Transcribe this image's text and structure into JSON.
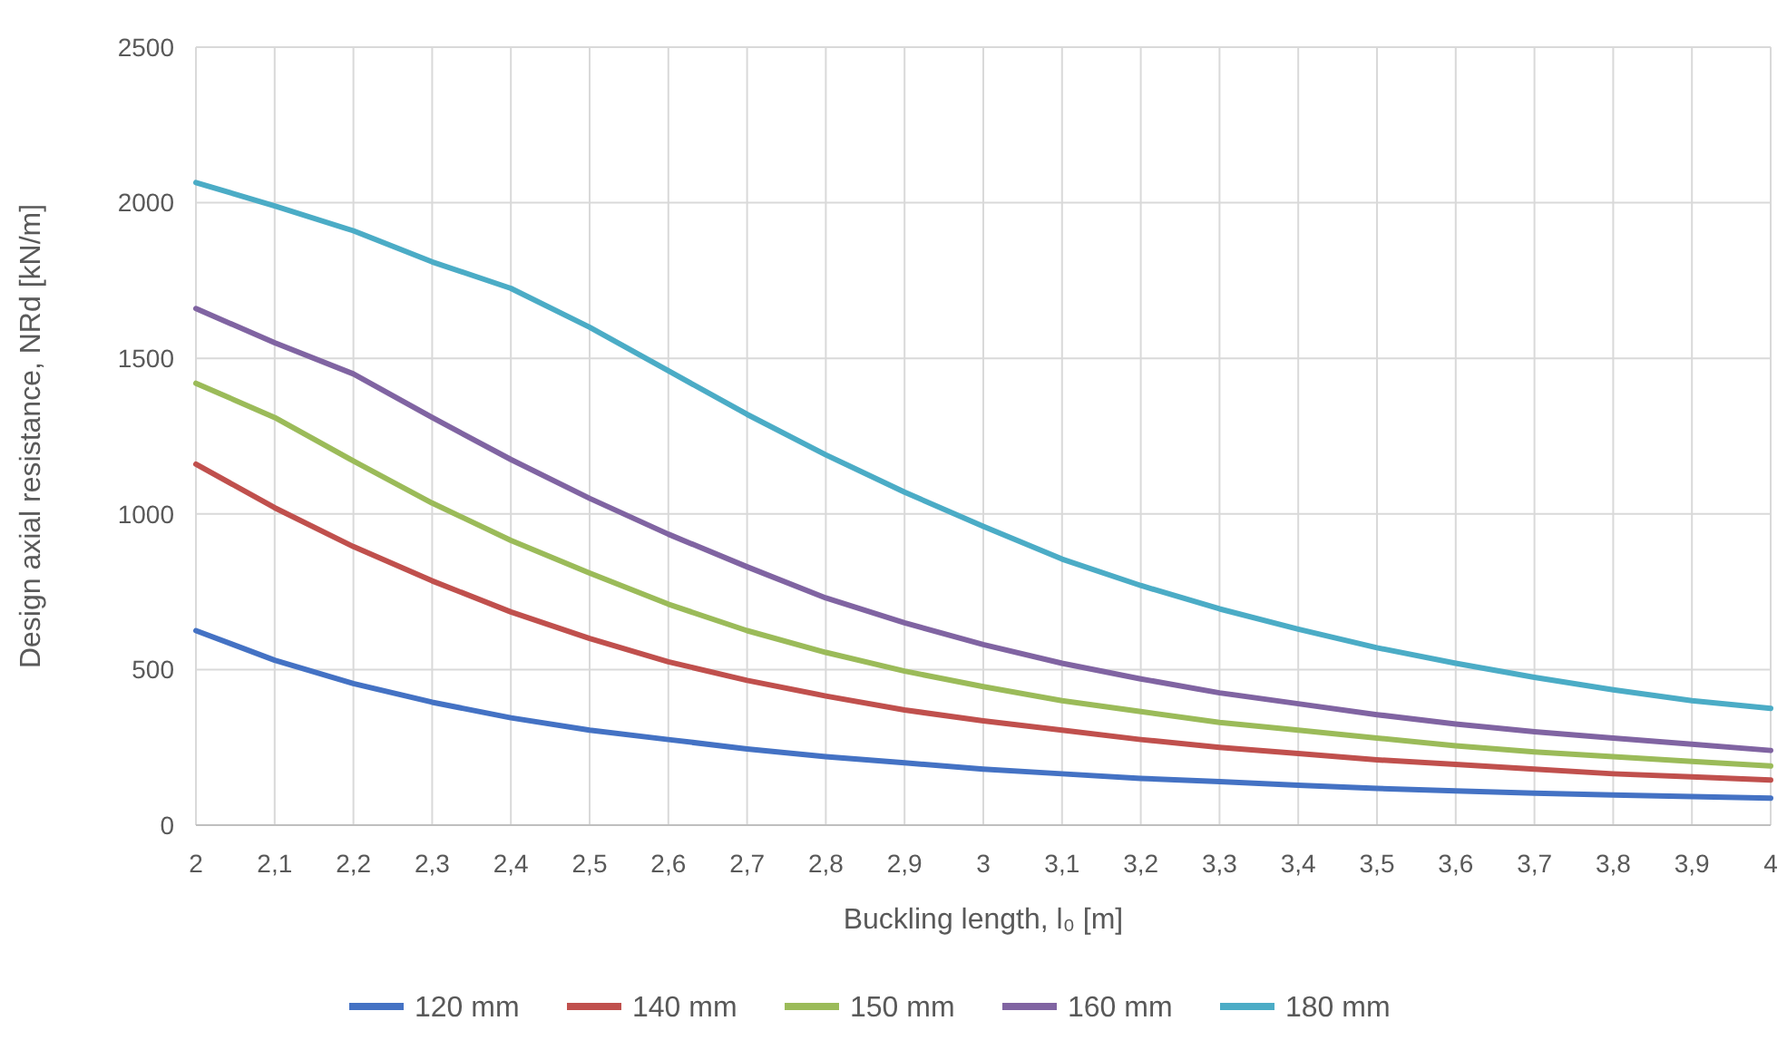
{
  "chart_data": {
    "type": "line",
    "xlabel": "Buckling length, l₀ [m]",
    "ylabel": "Design axial resistance, NRd [kN/m]",
    "categories": [
      "2",
      "2,1",
      "2,2",
      "2,3",
      "2,4",
      "2,5",
      "2,6",
      "2,7",
      "2,8",
      "2,9",
      "3",
      "3,1",
      "3,2",
      "3,3",
      "3,4",
      "3,5",
      "3,6",
      "3,7",
      "3,8",
      "3,9",
      "4"
    ],
    "ylim": [
      0,
      2500
    ],
    "yticks": [
      0,
      500,
      1000,
      1500,
      2000,
      2500
    ],
    "grid": true,
    "legend": "bottom",
    "marker": "none",
    "line_style": "solid",
    "series": [
      {
        "name": "120 mm",
        "color": "#4472c4",
        "values": [
          625,
          530,
          455,
          395,
          345,
          305,
          275,
          245,
          220,
          200,
          180,
          165,
          150,
          140,
          128,
          118,
          110,
          103,
          97,
          92,
          87
        ]
      },
      {
        "name": "140 mm",
        "color": "#c0504d",
        "values": [
          1160,
          1020,
          895,
          785,
          685,
          600,
          525,
          465,
          415,
          370,
          335,
          305,
          275,
          250,
          230,
          210,
          195,
          180,
          165,
          155,
          145
        ]
      },
      {
        "name": "150 mm",
        "color": "#9bbb59",
        "values": [
          1420,
          1310,
          1170,
          1035,
          915,
          810,
          710,
          625,
          555,
          495,
          445,
          400,
          365,
          330,
          305,
          280,
          255,
          235,
          220,
          205,
          190
        ]
      },
      {
        "name": "160 mm",
        "color": "#8064a2",
        "values": [
          1660,
          1550,
          1450,
          1310,
          1175,
          1050,
          935,
          830,
          730,
          650,
          580,
          520,
          470,
          425,
          390,
          355,
          325,
          300,
          280,
          260,
          240
        ]
      },
      {
        "name": "180 mm",
        "color": "#4bacc6",
        "values": [
          2065,
          1990,
          1910,
          1810,
          1725,
          1600,
          1460,
          1320,
          1190,
          1070,
          960,
          855,
          770,
          695,
          630,
          570,
          520,
          475,
          435,
          400,
          375
        ]
      }
    ]
  }
}
